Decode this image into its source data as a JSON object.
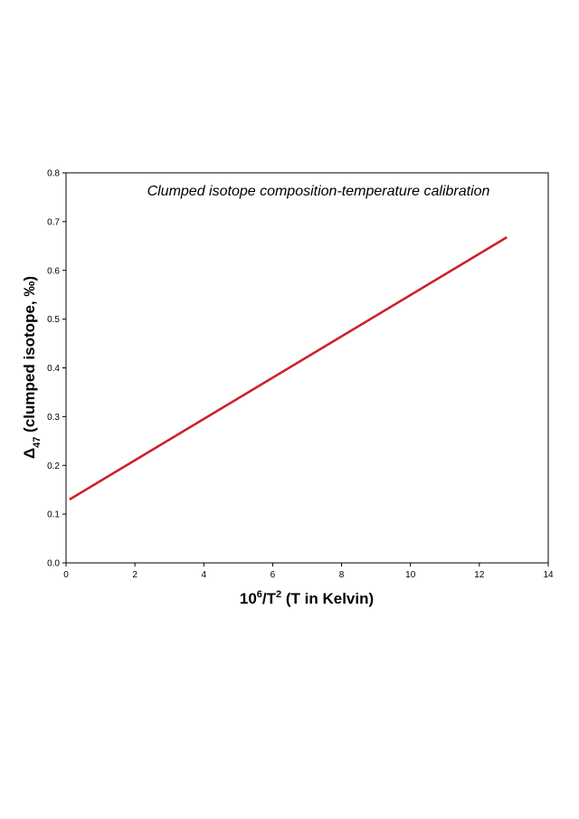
{
  "chart_data": {
    "type": "line",
    "title": "Clumped isotope composition-temperature calibration",
    "xlabel": {
      "base": "10",
      "sup": "6",
      "mid": "/T",
      "sup2": "2",
      "tail": " (T in Kelvin)"
    },
    "ylabel": {
      "symbol": "Δ",
      "sub": "47",
      "tail": " (clumped isotope, ‰)"
    },
    "xlim": [
      0,
      14
    ],
    "ylim": [
      0.0,
      0.8
    ],
    "x_ticks": [
      "0",
      "2",
      "4",
      "6",
      "8",
      "10",
      "12",
      "14"
    ],
    "y_ticks": [
      "0.0",
      "0.1",
      "0.2",
      "0.3",
      "0.4",
      "0.5",
      "0.6",
      "0.7",
      "0.8"
    ],
    "grid": false,
    "series": [
      {
        "color": "#cc2229",
        "x": [
          0.1,
          12.8
        ],
        "y": [
          0.13,
          0.668
        ]
      }
    ]
  }
}
